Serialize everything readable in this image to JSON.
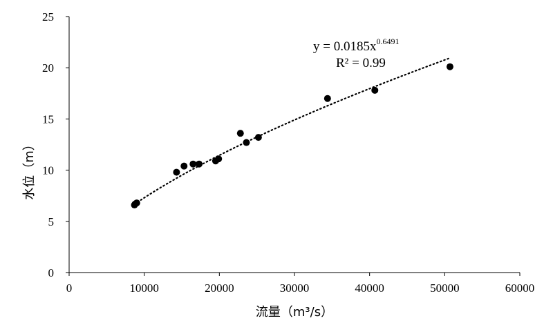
{
  "chart_data": {
    "type": "scatter",
    "xlabel": "流量（m³/s）",
    "ylabel": "水位（m）",
    "xlim": [
      0,
      60000
    ],
    "ylim": [
      0,
      25
    ],
    "xticks": [
      0,
      10000,
      20000,
      30000,
      40000,
      50000,
      60000
    ],
    "yticks": [
      0,
      5,
      10,
      15,
      20,
      25
    ],
    "xtick_labels": [
      "0",
      "10000",
      "20000",
      "30000",
      "40000",
      "50000",
      "60000"
    ],
    "ytick_labels": [
      "0",
      "5",
      "10",
      "15",
      "20",
      "25"
    ],
    "grid": false,
    "points": [
      {
        "x": 8700,
        "y": 6.6
      },
      {
        "x": 8800,
        "y": 6.7
      },
      {
        "x": 9000,
        "y": 6.8
      },
      {
        "x": 14300,
        "y": 9.8
      },
      {
        "x": 15300,
        "y": 10.4
      },
      {
        "x": 16500,
        "y": 10.6
      },
      {
        "x": 17300,
        "y": 10.6
      },
      {
        "x": 19500,
        "y": 10.9
      },
      {
        "x": 19900,
        "y": 11.1
      },
      {
        "x": 22800,
        "y": 13.6
      },
      {
        "x": 23600,
        "y": 12.7
      },
      {
        "x": 25200,
        "y": 13.2
      },
      {
        "x": 34400,
        "y": 17.0
      },
      {
        "x": 40700,
        "y": 17.8
      },
      {
        "x": 50700,
        "y": 20.1
      }
    ],
    "trendline": {
      "type": "power",
      "coefficient": 0.0185,
      "exponent": 0.6491,
      "x_range": [
        8700,
        50500
      ],
      "equation_prefix": "y = 0.0185x",
      "equation_exponent": "0.6491",
      "r_squared_label": "R² = 0.99"
    }
  }
}
